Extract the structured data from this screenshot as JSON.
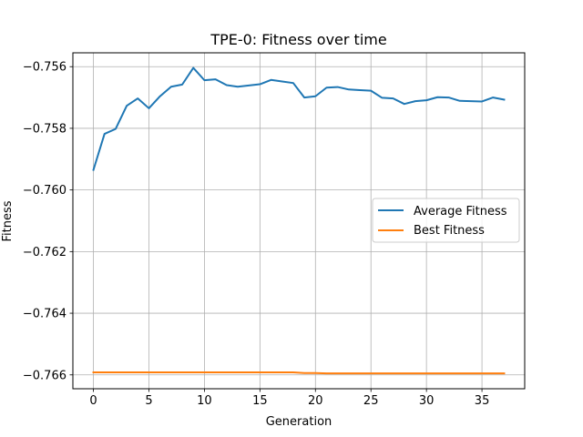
{
  "chart_data": {
    "type": "line",
    "title": "TPE-0: Fitness over time",
    "xlabel": "Generation",
    "ylabel": "Fitness",
    "xlim": [
      -1.85,
      38.85
    ],
    "ylim": [
      -0.76645,
      -0.75555
    ],
    "xticks": [
      0,
      5,
      10,
      15,
      20,
      25,
      30,
      35
    ],
    "xtick_labels": [
      "0",
      "5",
      "10",
      "15",
      "20",
      "25",
      "30",
      "35"
    ],
    "yticks": [
      -0.766,
      -0.764,
      -0.762,
      -0.76,
      -0.758,
      -0.756
    ],
    "ytick_labels": [
      "−0.766",
      "−0.764",
      "−0.762",
      "−0.760",
      "−0.758",
      "−0.756"
    ],
    "grid": true,
    "legend_position": "center-right",
    "x": [
      0,
      1,
      2,
      3,
      4,
      5,
      6,
      7,
      8,
      9,
      10,
      11,
      12,
      13,
      14,
      15,
      16,
      17,
      18,
      19,
      20,
      21,
      22,
      23,
      24,
      25,
      26,
      27,
      28,
      29,
      30,
      31,
      32,
      33,
      34,
      35,
      36,
      37
    ],
    "series": [
      {
        "name": "Average Fitness",
        "color": "#1f77b4",
        "values": [
          -0.75935,
          -0.75818,
          -0.75802,
          -0.75727,
          -0.75703,
          -0.75735,
          -0.75696,
          -0.75665,
          -0.75658,
          -0.75604,
          -0.75644,
          -0.75641,
          -0.7566,
          -0.75665,
          -0.75661,
          -0.75657,
          -0.75643,
          -0.75648,
          -0.75653,
          -0.757,
          -0.75696,
          -0.75668,
          -0.75666,
          -0.75674,
          -0.75676,
          -0.75678,
          -0.75701,
          -0.75703,
          -0.75721,
          -0.75712,
          -0.75709,
          -0.75699,
          -0.757,
          -0.75711,
          -0.75712,
          -0.75713,
          -0.757,
          -0.75707
        ]
      },
      {
        "name": "Best Fitness",
        "color": "#ff7f0e",
        "values": [
          -0.76592,
          -0.76592,
          -0.76592,
          -0.76592,
          -0.76592,
          -0.76592,
          -0.76592,
          -0.76592,
          -0.76592,
          -0.76592,
          -0.76592,
          -0.76592,
          -0.76592,
          -0.76592,
          -0.76592,
          -0.76592,
          -0.76592,
          -0.76592,
          -0.76592,
          -0.76594,
          -0.76594,
          -0.76595,
          -0.76595,
          -0.76595,
          -0.76595,
          -0.76595,
          -0.76595,
          -0.76595,
          -0.76595,
          -0.76595,
          -0.76595,
          -0.76595,
          -0.76595,
          -0.76595,
          -0.76595,
          -0.76595,
          -0.76595,
          -0.76595
        ]
      }
    ]
  }
}
